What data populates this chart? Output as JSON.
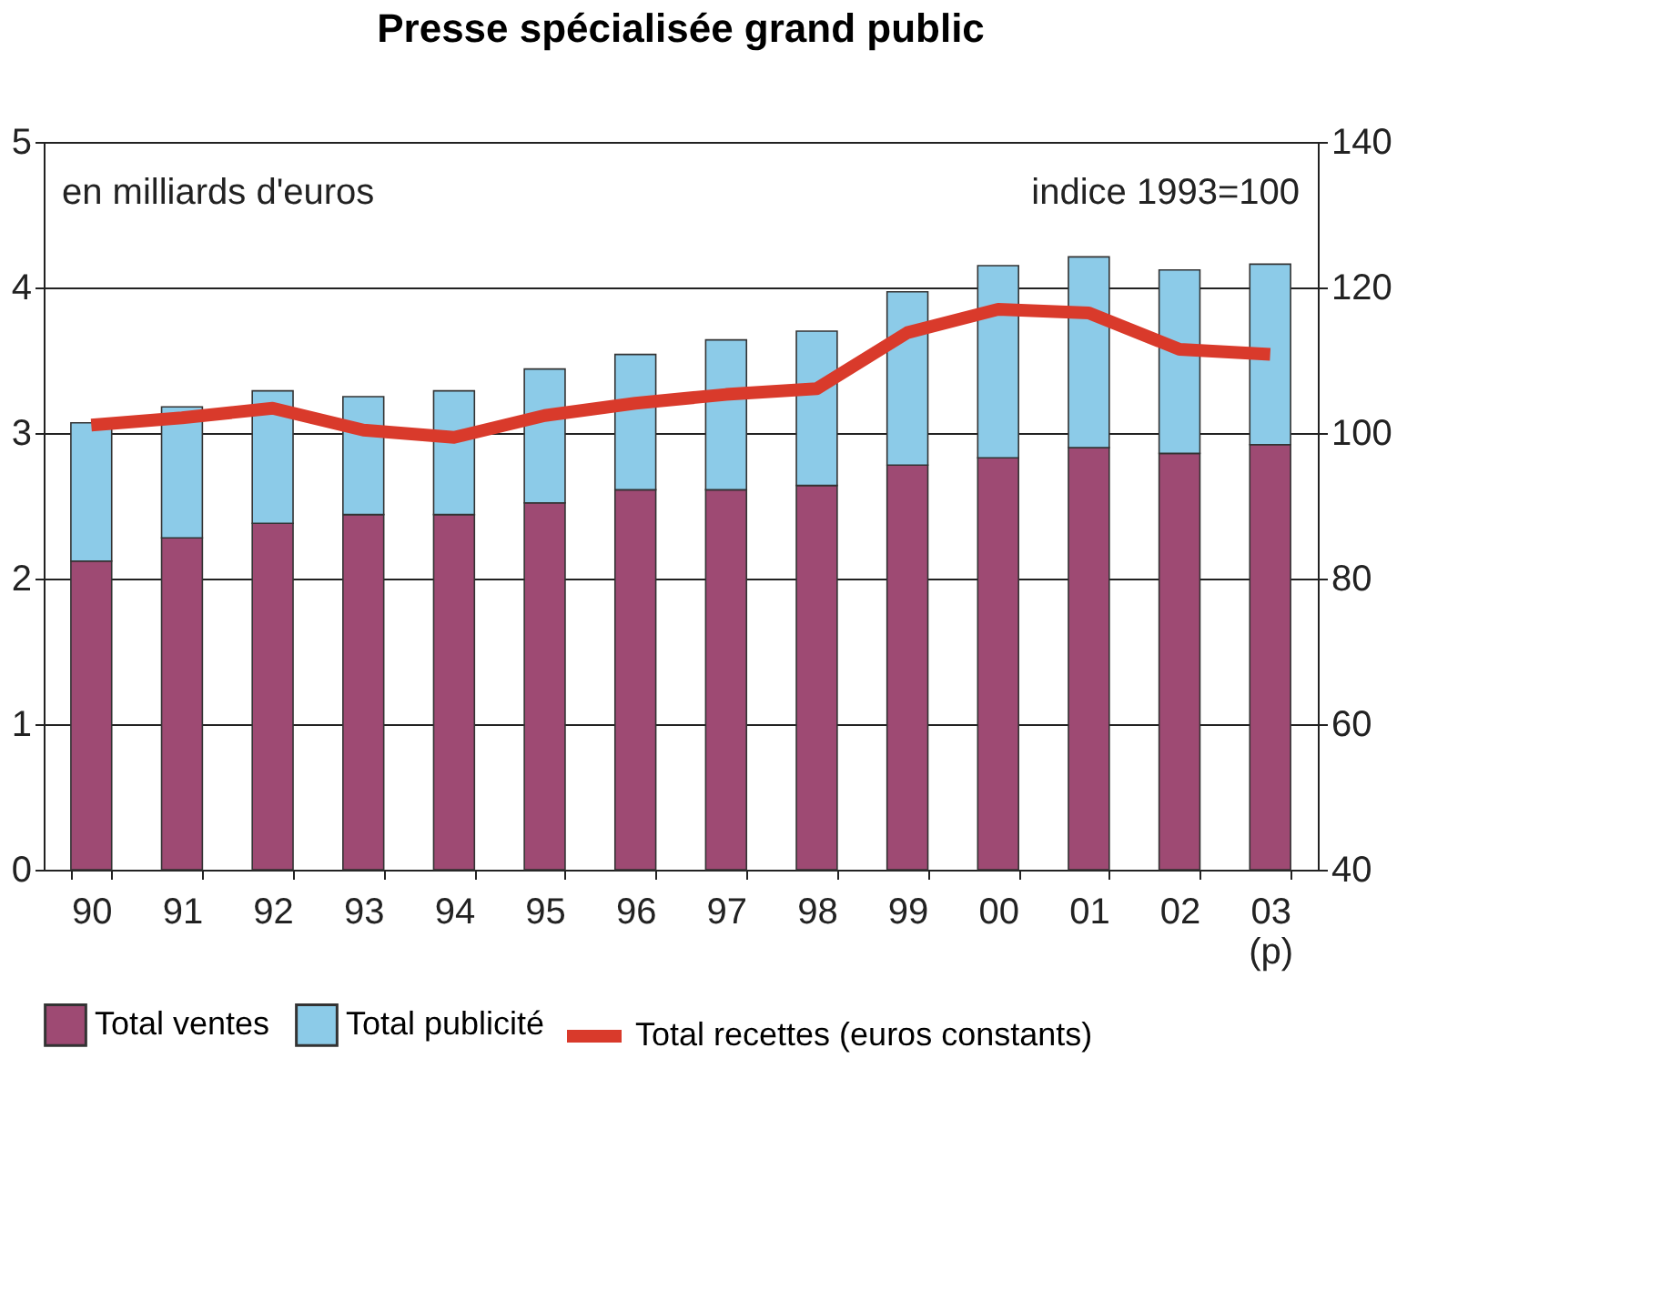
{
  "chart_data": {
    "type": "bar",
    "title": "Presse spécialisée grand public",
    "categories": [
      "90",
      "91",
      "92",
      "93",
      "94",
      "95",
      "96",
      "97",
      "98",
      "99",
      "00",
      "01",
      "02",
      "03\n(p)"
    ],
    "series": [
      {
        "name": "Total ventes",
        "color": "#9e4a73",
        "values": [
          2.12,
          2.28,
          2.38,
          2.44,
          2.44,
          2.52,
          2.61,
          2.61,
          2.64,
          2.78,
          2.83,
          2.9,
          2.86,
          2.92
        ]
      },
      {
        "name": "Total publicité",
        "color": "#8ccbe8",
        "values": [
          0.95,
          0.9,
          0.91,
          0.81,
          0.85,
          0.92,
          0.93,
          1.03,
          1.06,
          1.19,
          1.32,
          1.31,
          1.26,
          1.24
        ]
      },
      {
        "name": "Total recettes (euros constants)",
        "color": "#d93a2b",
        "type": "line",
        "axis": "y2",
        "values": [
          101.1,
          102.1,
          103.4,
          100.4,
          99.4,
          102.4,
          104.1,
          105.3,
          106.1,
          113.8,
          117.0,
          116.5,
          111.5,
          110.8
        ]
      }
    ],
    "stacked": true,
    "ylim": [
      0,
      5
    ],
    "yticks": [
      0,
      1,
      2,
      3,
      4,
      5
    ],
    "y2lim": [
      40,
      140
    ],
    "y2ticks": [
      40,
      60,
      80,
      100,
      120,
      140
    ],
    "grid": "y",
    "legend": "bottom",
    "marker": "none",
    "line_style": "solid",
    "annotations": [
      "en milliards d'euros",
      "indice 1993=100"
    ]
  }
}
